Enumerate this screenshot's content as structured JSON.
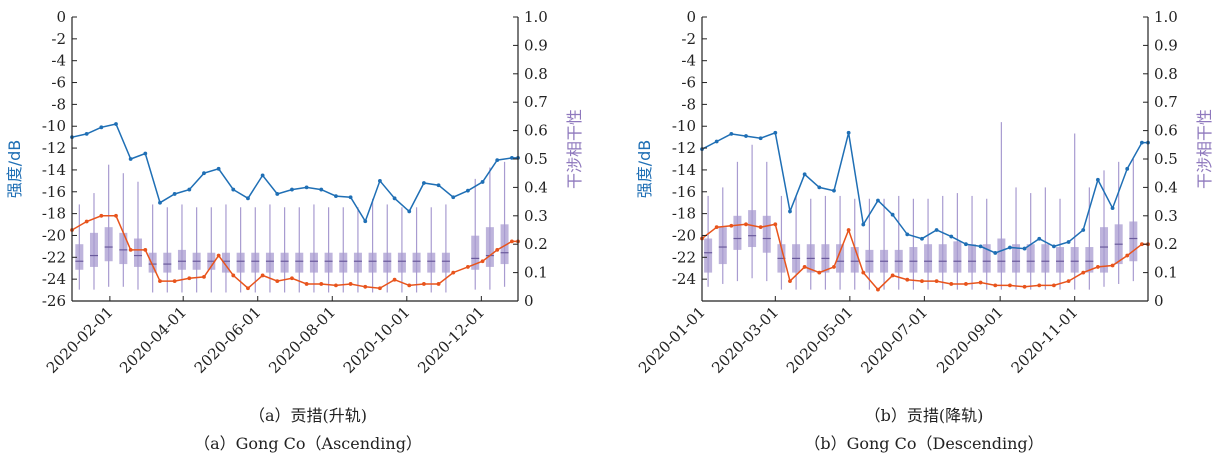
{
  "chart_data": [
    {
      "type": "line",
      "caption_cn": "（a）贡措(升轨)",
      "caption_en": "（a）Gong Co（Ascending）",
      "ylabel_left": "强度/dB",
      "ylabel_right": "干涉相干性",
      "ylim_left": [
        -26,
        0
      ],
      "ylim_right": [
        0,
        1.0
      ],
      "yticks_left": [
        "0",
        "-2",
        "-4",
        "-6",
        "-8",
        "-10",
        "-12",
        "-14",
        "-16",
        "-18",
        "-20",
        "-22",
        "-24",
        "-26"
      ],
      "yticks_right": [
        "1.0",
        "0.9",
        "0.8",
        "0.7",
        "0.6",
        "0.5",
        "0.4",
        "0.3",
        "0.2",
        "0.1",
        "0"
      ],
      "xlim": [
        "2020-01-01",
        "2020-12-31"
      ],
      "xticks": [
        "2020-02-01",
        "2020-04-01",
        "2020-06-01",
        "2020-08-01",
        "2020-10-01",
        "2020-12-01"
      ],
      "intensity_series": {
        "color": "#1f6fb5",
        "x": [
          "2020-01-01",
          "2020-01-13",
          "2020-01-25",
          "2020-02-06",
          "2020-02-18",
          "2020-03-01",
          "2020-03-13",
          "2020-03-25",
          "2020-04-06",
          "2020-04-18",
          "2020-04-30",
          "2020-05-12",
          "2020-05-24",
          "2020-06-05",
          "2020-06-17",
          "2020-06-29",
          "2020-07-11",
          "2020-07-23",
          "2020-08-04",
          "2020-08-16",
          "2020-08-28",
          "2020-09-09",
          "2020-09-21",
          "2020-10-03",
          "2020-10-15",
          "2020-10-27",
          "2020-11-08",
          "2020-11-20",
          "2020-12-02",
          "2020-12-14",
          "2020-12-26",
          "2020-12-31"
        ],
        "values": [
          -11.0,
          -10.7,
          -10.1,
          -9.8,
          -13.0,
          -12.5,
          -17.0,
          -16.2,
          -15.8,
          -14.3,
          -13.9,
          -15.8,
          -16.6,
          -14.5,
          -16.2,
          -15.8,
          -15.6,
          -15.8,
          -16.4,
          -16.5,
          -18.7,
          -15.0,
          -16.6,
          -17.8,
          -15.2,
          -15.4,
          -16.5,
          -15.9,
          -15.1,
          -13.1,
          -12.9,
          -12.9
        ]
      },
      "coherence_series": {
        "color": "#e8541c",
        "x": [
          "2020-01-01",
          "2020-01-13",
          "2020-01-25",
          "2020-02-06",
          "2020-02-18",
          "2020-03-01",
          "2020-03-13",
          "2020-03-25",
          "2020-04-06",
          "2020-04-18",
          "2020-04-30",
          "2020-05-12",
          "2020-05-24",
          "2020-06-05",
          "2020-06-17",
          "2020-06-29",
          "2020-07-11",
          "2020-07-23",
          "2020-08-04",
          "2020-08-16",
          "2020-08-28",
          "2020-09-09",
          "2020-09-21",
          "2020-10-03",
          "2020-10-15",
          "2020-10-27",
          "2020-11-08",
          "2020-11-20",
          "2020-12-02",
          "2020-12-14",
          "2020-12-26",
          "2020-12-31"
        ],
        "values": [
          0.25,
          0.28,
          0.3,
          0.3,
          0.18,
          0.18,
          0.07,
          0.07,
          0.08,
          0.085,
          0.16,
          0.09,
          0.045,
          0.09,
          0.07,
          0.08,
          0.06,
          0.06,
          0.055,
          0.06,
          0.05,
          0.045,
          0.075,
          0.055,
          0.06,
          0.06,
          0.1,
          0.12,
          0.14,
          0.18,
          0.21,
          0.21
        ]
      },
      "boxes": {
        "color": "#a89bd0",
        "x": [
          "2020-01-07",
          "2020-01-19",
          "2020-01-31",
          "2020-02-12",
          "2020-02-24",
          "2020-03-07",
          "2020-03-19",
          "2020-03-31",
          "2020-04-12",
          "2020-04-24",
          "2020-05-06",
          "2020-05-18",
          "2020-05-30",
          "2020-06-11",
          "2020-06-23",
          "2020-07-05",
          "2020-07-17",
          "2020-07-29",
          "2020-08-10",
          "2020-08-22",
          "2020-09-03",
          "2020-09-15",
          "2020-09-27",
          "2020-10-09",
          "2020-10-21",
          "2020-11-02",
          "2020-11-26",
          "2020-12-08",
          "2020-12-20"
        ],
        "q1": [
          0.11,
          0.12,
          0.14,
          0.13,
          0.12,
          0.1,
          0.1,
          0.11,
          0.11,
          0.11,
          0.1,
          0.1,
          0.1,
          0.1,
          0.1,
          0.1,
          0.1,
          0.1,
          0.1,
          0.1,
          0.1,
          0.1,
          0.1,
          0.1,
          0.1,
          0.1,
          0.11,
          0.12,
          0.13
        ],
        "q3": [
          0.2,
          0.24,
          0.26,
          0.24,
          0.22,
          0.17,
          0.17,
          0.18,
          0.17,
          0.17,
          0.17,
          0.17,
          0.17,
          0.17,
          0.17,
          0.17,
          0.17,
          0.17,
          0.17,
          0.17,
          0.17,
          0.17,
          0.17,
          0.17,
          0.17,
          0.17,
          0.23,
          0.26,
          0.27
        ],
        "median": [
          0.14,
          0.16,
          0.19,
          0.18,
          0.16,
          0.13,
          0.13,
          0.14,
          0.14,
          0.14,
          0.14,
          0.14,
          0.14,
          0.14,
          0.14,
          0.14,
          0.14,
          0.14,
          0.14,
          0.14,
          0.14,
          0.14,
          0.14,
          0.14,
          0.14,
          0.14,
          0.15,
          0.16,
          0.17
        ],
        "whisker_low": [
          0.04,
          0.04,
          0.05,
          0.05,
          0.04,
          0.03,
          0.03,
          0.03,
          0.03,
          0.03,
          0.03,
          0.03,
          0.03,
          0.03,
          0.03,
          0.03,
          0.03,
          0.03,
          0.03,
          0.03,
          0.03,
          0.03,
          0.03,
          0.03,
          0.03,
          0.03,
          0.04,
          0.04,
          0.05
        ],
        "whisker_high": [
          0.34,
          0.38,
          0.48,
          0.45,
          0.42,
          0.34,
          0.33,
          0.34,
          0.33,
          0.33,
          0.34,
          0.33,
          0.33,
          0.34,
          0.33,
          0.33,
          0.34,
          0.33,
          0.33,
          0.33,
          0.36,
          0.34,
          0.33,
          0.33,
          0.33,
          0.34,
          0.43,
          0.47,
          0.49
        ]
      }
    },
    {
      "type": "line",
      "caption_cn": "（b）贡措(降轨)",
      "caption_en": "（b）Gong Co（Descending）",
      "ylabel_left": "强度/dB",
      "ylabel_right": "干涉相干性",
      "ylim_left": [
        -26,
        0
      ],
      "ylim_right": [
        0,
        1.0
      ],
      "yticks_left": [
        "0",
        "-2",
        "-4",
        "-6",
        "-8",
        "-10",
        "-12",
        "-14",
        "-16",
        "-18",
        "-20",
        "-22",
        "-24"
      ],
      "yticks_right": [
        "1.0",
        "0.9",
        "0.8",
        "0.7",
        "0.6",
        "0.5",
        "0.4",
        "0.3",
        "0.2",
        "0.1",
        "0"
      ],
      "xlim": [
        "2020-01-01",
        "2020-12-31"
      ],
      "xticks": [
        "2020-01-01",
        "2020-03-01",
        "2020-05-01",
        "2020-07-01",
        "2020-09-01",
        "2020-11-01"
      ],
      "intensity_series": {
        "color": "#1f6fb5",
        "x": [
          "2020-01-01",
          "2020-01-13",
          "2020-01-25",
          "2020-02-06",
          "2020-02-18",
          "2020-03-01",
          "2020-03-13",
          "2020-03-25",
          "2020-04-06",
          "2020-04-18",
          "2020-04-30",
          "2020-05-12",
          "2020-05-24",
          "2020-06-05",
          "2020-06-17",
          "2020-06-29",
          "2020-07-11",
          "2020-07-23",
          "2020-08-04",
          "2020-08-16",
          "2020-08-28",
          "2020-09-09",
          "2020-09-21",
          "2020-10-03",
          "2020-10-15",
          "2020-10-27",
          "2020-11-08",
          "2020-11-20",
          "2020-12-02",
          "2020-12-14",
          "2020-12-26",
          "2020-12-31"
        ],
        "values": [
          -12.1,
          -11.4,
          -10.7,
          -10.9,
          -11.1,
          -10.6,
          -17.8,
          -14.4,
          -15.6,
          -15.9,
          -10.6,
          -19.0,
          -16.8,
          -18.1,
          -19.9,
          -20.3,
          -19.5,
          -20.1,
          -20.8,
          -21.0,
          -21.6,
          -21.1,
          -21.2,
          -20.3,
          -21.0,
          -20.6,
          -19.5,
          -14.9,
          -17.5,
          -13.9,
          -11.5,
          -11.5
        ]
      },
      "coherence_series": {
        "color": "#e8541c",
        "x": [
          "2020-01-01",
          "2020-01-13",
          "2020-01-25",
          "2020-02-06",
          "2020-02-18",
          "2020-03-01",
          "2020-03-13",
          "2020-03-25",
          "2020-04-06",
          "2020-04-18",
          "2020-04-30",
          "2020-05-12",
          "2020-05-24",
          "2020-06-05",
          "2020-06-17",
          "2020-06-29",
          "2020-07-11",
          "2020-07-23",
          "2020-08-04",
          "2020-08-16",
          "2020-08-28",
          "2020-09-09",
          "2020-09-21",
          "2020-10-03",
          "2020-10-15",
          "2020-10-27",
          "2020-11-08",
          "2020-11-20",
          "2020-12-02",
          "2020-12-14",
          "2020-12-26",
          "2020-12-31"
        ],
        "values": [
          0.22,
          0.26,
          0.265,
          0.27,
          0.26,
          0.27,
          0.07,
          0.12,
          0.1,
          0.12,
          0.25,
          0.1,
          0.04,
          0.09,
          0.075,
          0.07,
          0.07,
          0.06,
          0.06,
          0.065,
          0.055,
          0.055,
          0.05,
          0.055,
          0.055,
          0.07,
          0.1,
          0.12,
          0.125,
          0.16,
          0.2,
          0.2
        ]
      },
      "boxes": {
        "color": "#a89bd0",
        "x": [
          "2020-01-06",
          "2020-01-18",
          "2020-01-30",
          "2020-02-11",
          "2020-02-23",
          "2020-03-06",
          "2020-03-18",
          "2020-03-30",
          "2020-04-11",
          "2020-04-23",
          "2020-05-05",
          "2020-05-17",
          "2020-05-29",
          "2020-06-10",
          "2020-06-22",
          "2020-07-04",
          "2020-07-16",
          "2020-07-28",
          "2020-08-09",
          "2020-08-21",
          "2020-09-02",
          "2020-09-14",
          "2020-09-26",
          "2020-10-08",
          "2020-10-20",
          "2020-11-01",
          "2020-11-13",
          "2020-11-25",
          "2020-12-07",
          "2020-12-19"
        ],
        "q1": [
          0.1,
          0.13,
          0.18,
          0.19,
          0.17,
          0.1,
          0.1,
          0.1,
          0.1,
          0.1,
          0.1,
          0.1,
          0.1,
          0.1,
          0.1,
          0.1,
          0.1,
          0.1,
          0.1,
          0.1,
          0.1,
          0.1,
          0.1,
          0.1,
          0.1,
          0.1,
          0.1,
          0.1,
          0.13,
          0.14
        ],
        "q3": [
          0.22,
          0.26,
          0.3,
          0.32,
          0.3,
          0.2,
          0.2,
          0.2,
          0.2,
          0.2,
          0.19,
          0.18,
          0.18,
          0.18,
          0.19,
          0.2,
          0.2,
          0.21,
          0.2,
          0.2,
          0.22,
          0.2,
          0.2,
          0.2,
          0.19,
          0.19,
          0.19,
          0.26,
          0.27,
          0.28
        ],
        "median": [
          0.17,
          0.19,
          0.22,
          0.23,
          0.22,
          0.15,
          0.15,
          0.15,
          0.15,
          0.14,
          0.14,
          0.14,
          0.14,
          0.14,
          0.14,
          0.14,
          0.14,
          0.14,
          0.14,
          0.14,
          0.14,
          0.14,
          0.14,
          0.14,
          0.14,
          0.14,
          0.14,
          0.19,
          0.2,
          0.22
        ],
        "whisker_low": [
          0.05,
          0.06,
          0.07,
          0.08,
          0.07,
          0.04,
          0.04,
          0.04,
          0.04,
          0.04,
          0.04,
          0.04,
          0.04,
          0.04,
          0.04,
          0.04,
          0.04,
          0.04,
          0.04,
          0.04,
          0.04,
          0.04,
          0.04,
          0.04,
          0.04,
          0.04,
          0.04,
          0.05,
          0.06,
          0.07
        ],
        "whisker_high": [
          0.37,
          0.4,
          0.49,
          0.55,
          0.49,
          0.37,
          0.37,
          0.36,
          0.37,
          0.37,
          0.36,
          0.36,
          0.36,
          0.37,
          0.36,
          0.36,
          0.37,
          0.38,
          0.37,
          0.36,
          0.63,
          0.4,
          0.38,
          0.4,
          0.36,
          0.59,
          0.4,
          0.46,
          0.49,
          0.5
        ]
      }
    }
  ]
}
